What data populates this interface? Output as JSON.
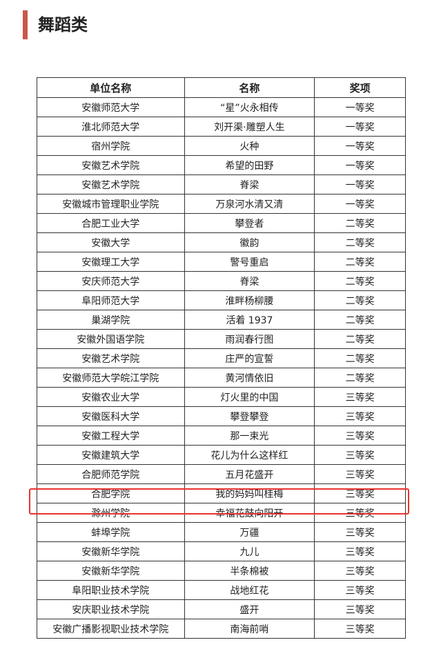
{
  "title": "舞蹈类",
  "table": {
    "headers": [
      "单位名称",
      "名称",
      "奖项"
    ],
    "rows": [
      [
        "安徽师范大学",
        "“星”火永相传",
        "一等奖"
      ],
      [
        "淮北师范大学",
        "刘开渠·雕塑人生",
        "一等奖"
      ],
      [
        "宿州学院",
        "火种",
        "一等奖"
      ],
      [
        "安徽艺术学院",
        "希望的田野",
        "一等奖"
      ],
      [
        "安徽艺术学院",
        "脊梁",
        "一等奖"
      ],
      [
        "安徽城市管理职业学院",
        "万泉河水清又清",
        "一等奖"
      ],
      [
        "合肥工业大学",
        "攀登者",
        "二等奖"
      ],
      [
        "安徽大学",
        "徽韵",
        "二等奖"
      ],
      [
        "安徽理工大学",
        "警号重启",
        "二等奖"
      ],
      [
        "安庆师范大学",
        "脊梁",
        "二等奖"
      ],
      [
        "阜阳师范大学",
        "淮畔杨柳腰",
        "二等奖"
      ],
      [
        "巢湖学院",
        "活着 1937",
        "二等奖"
      ],
      [
        "安徽外国语学院",
        "雨润春行图",
        "二等奖"
      ],
      [
        "安徽艺术学院",
        "庄严的宣誓",
        "二等奖"
      ],
      [
        "安徽师范大学皖江学院",
        "黄河情依旧",
        "二等奖"
      ],
      [
        "安徽农业大学",
        "灯火里的中国",
        "三等奖"
      ],
      [
        "安徽医科大学",
        "攀登攀登",
        "三等奖"
      ],
      [
        "安徽工程大学",
        "那一束光",
        "三等奖"
      ],
      [
        "安徽建筑大学",
        "花儿为什么这样红",
        "三等奖"
      ],
      [
        "合肥师范学院",
        "五月花盛开",
        "三等奖"
      ],
      [
        "合肥学院",
        "我的妈妈叫桂梅",
        "三等奖"
      ],
      [
        "滁州学院",
        "幸福花鼓向阳开",
        "三等奖"
      ],
      [
        "蚌埠学院",
        "万疆",
        "三等奖"
      ],
      [
        "安徽新华学院",
        "九儿",
        "三等奖"
      ],
      [
        "安徽新华学院",
        "半条棉被",
        "三等奖"
      ],
      [
        "阜阳职业技术学院",
        "战地红花",
        "三等奖"
      ],
      [
        "安庆职业技术学院",
        "盛开",
        "三等奖"
      ],
      [
        "安徽广播影视职业技术学院",
        "南海前哨",
        "三等奖"
      ]
    ],
    "highlighted_row": 20,
    "highlight_color": "#e8322e"
  },
  "accent_color": "#c9594a"
}
